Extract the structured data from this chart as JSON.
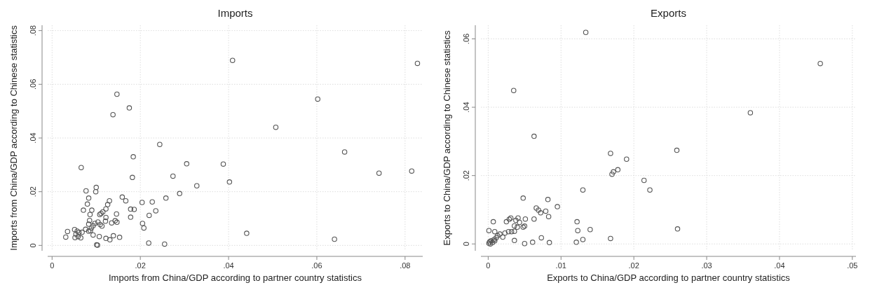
{
  "chart_data": [
    {
      "type": "scatter",
      "title": "Imports",
      "xlabel": "Imports from China/GDP according to partner country statistics",
      "ylabel": "Imports from China/GDP according to Chinese statistics",
      "marker": "circle",
      "grid": true,
      "xlim": [
        -0.001,
        0.084
      ],
      "ylim": [
        -0.002,
        0.082
      ],
      "xticks": [
        0,
        {
          "value": 0.02,
          "label": ".02"
        },
        {
          "value": 0.04,
          "label": ".04"
        },
        {
          "value": 0.06,
          "label": ".06"
        },
        {
          "value": 0.08,
          "label": ".08"
        }
      ],
      "yticks": [
        0,
        {
          "value": 0.02,
          "label": ".02"
        },
        {
          "value": 0.04,
          "label": ".04"
        },
        {
          "value": 0.06,
          "label": ".06"
        },
        {
          "value": 0.08,
          "label": ".08"
        }
      ],
      "series": [
        {
          "color": "#555555",
          "x": [
            0.0409,
            0.0828,
            0.0147,
            0.0175,
            0.0138,
            0.0602,
            0.0507,
            0.0244,
            0.0184,
            0.0305,
            0.0388,
            0.0663,
            0.0066,
            0.0182,
            0.0274,
            0.0815,
            0.0741,
            0.0402,
            0.0328,
            0.0289,
            0.0077,
            0.01,
            0.0099,
            0.0083,
            0.0159,
            0.0167,
            0.013,
            0.0126,
            0.008,
            0.0071,
            0.009,
            0.0204,
            0.0227,
            0.0258,
            0.0235,
            0.0178,
            0.0186,
            0.0122,
            0.0115,
            0.0111,
            0.0108,
            0.0086,
            0.0146,
            0.0178,
            0.022,
            0.0122,
            0.0085,
            0.0121,
            0.0135,
            0.0143,
            0.0147,
            0.0104,
            0.0097,
            0.0109,
            0.0113,
            0.0093,
            0.0083,
            0.0205,
            0.0208,
            0.0089,
            0.0076,
            0.0083,
            0.0087,
            0.0068,
            0.0051,
            0.0035,
            0.0057,
            0.0061,
            0.0054,
            0.0031,
            0.0052,
            0.0065,
            0.0059,
            0.0093,
            0.0107,
            0.0122,
            0.0131,
            0.0139,
            0.0153,
            0.0441,
            0.064,
            0.0219,
            0.0255,
            0.0101,
            0.0103
          ],
          "values": [
            0.0689,
            0.0678,
            0.0563,
            0.0512,
            0.0487,
            0.0545,
            0.044,
            0.0376,
            0.033,
            0.0304,
            0.0303,
            0.0348,
            0.029,
            0.0253,
            0.0258,
            0.0277,
            0.0269,
            0.0236,
            0.0222,
            0.0193,
            0.0203,
            0.0216,
            0.02,
            0.0176,
            0.018,
            0.0166,
            0.0166,
            0.0152,
            0.0154,
            0.0131,
            0.0131,
            0.016,
            0.0162,
            0.0176,
            0.0129,
            0.0135,
            0.0134,
            0.0136,
            0.0125,
            0.0119,
            0.0115,
            0.0115,
            0.0117,
            0.0105,
            0.0112,
            0.0104,
            0.0093,
            0.009,
            0.0084,
            0.0092,
            0.0086,
            0.0087,
            0.0082,
            0.0078,
            0.0072,
            0.0073,
            0.0079,
            0.0082,
            0.0065,
            0.0065,
            0.006,
            0.0053,
            0.0055,
            0.0049,
            0.0059,
            0.0052,
            0.0053,
            0.0048,
            0.0042,
            0.0031,
            0.0029,
            0.0028,
            0.0033,
            0.0039,
            0.0033,
            0.0026,
            0.0021,
            0.0036,
            0.003,
            0.0045,
            0.0023,
            0.0009,
            0.0005,
            0.0002,
            0.0001
          ]
        }
      ]
    },
    {
      "type": "scatter",
      "title": "Exports",
      "xlabel": "Exports to China/GDP according to partner country statistics",
      "ylabel": "Exports to China/GDP according to Chinese statistics",
      "marker": "circle",
      "grid": true,
      "xlim": [
        -0.001,
        0.0505
      ],
      "ylim": [
        -0.002,
        0.064
      ],
      "xticks": [
        0,
        {
          "value": 0.01,
          "label": ".01"
        },
        {
          "value": 0.02,
          "label": ".02"
        },
        {
          "value": 0.03,
          "label": ".03"
        },
        {
          "value": 0.04,
          "label": ".04"
        },
        {
          "value": 0.05,
          "label": ".05"
        }
      ],
      "yticks": [
        0,
        {
          "value": 0.02,
          "label": ".02"
        },
        {
          "value": 0.04,
          "label": ".04"
        },
        {
          "value": 0.06,
          "label": ".06"
        }
      ],
      "series": [
        {
          "color": "#555555",
          "x": [
            0.0134,
            0.0456,
            0.0035,
            0.036,
            0.0063,
            0.0168,
            0.0259,
            0.019,
            0.0178,
            0.0172,
            0.017,
            0.0214,
            0.0222,
            0.013,
            0.0048,
            0.0082,
            0.0095,
            0.0066,
            0.0069,
            0.0072,
            0.0079,
            0.0083,
            0.0063,
            0.0051,
            0.0041,
            0.0038,
            0.0031,
            0.0029,
            0.0025,
            0.0007,
            0.0043,
            0.0036,
            0.004,
            0.0048,
            0.005,
            0.0036,
            0.0032,
            0.0028,
            0.0023,
            0.002,
            0.0016,
            0.0013,
            0.0009,
            0.0001,
            0.0011,
            0.0008,
            0.0004,
            0.0002,
            0.0001,
            0.0006,
            0.0003,
            0.0009,
            0.0122,
            0.0123,
            0.014,
            0.026,
            0.0036,
            0.005,
            0.0061,
            0.0073,
            0.0084,
            0.0121,
            0.013,
            0.0168
          ],
          "values": [
            0.0619,
            0.0528,
            0.0449,
            0.0384,
            0.0315,
            0.0265,
            0.0274,
            0.0248,
            0.0217,
            0.0211,
            0.0204,
            0.0186,
            0.0158,
            0.0158,
            0.0134,
            0.013,
            0.0109,
            0.0105,
            0.0099,
            0.0091,
            0.0096,
            0.008,
            0.0073,
            0.0073,
            0.0076,
            0.0069,
            0.0076,
            0.0072,
            0.0065,
            0.0065,
            0.0063,
            0.0053,
            0.0049,
            0.0049,
            0.0052,
            0.0037,
            0.0036,
            0.0036,
            0.0032,
            0.002,
            0.0029,
            0.0024,
            0.0036,
            0.0039,
            0.0018,
            0.0013,
            0.0009,
            0.0006,
            0.0002,
            0.0004,
            0.0,
            0.0009,
            0.0065,
            0.0039,
            0.0042,
            0.0044,
            0.001,
            0.0001,
            0.0005,
            0.0018,
            0.0004,
            0.0005,
            0.0013,
            0.0016
          ]
        }
      ]
    }
  ]
}
